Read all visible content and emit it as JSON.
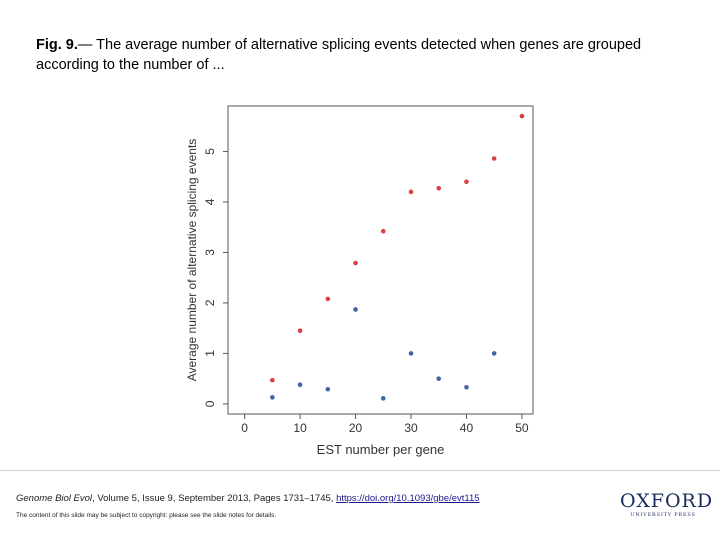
{
  "caption": {
    "label": "Fig. 9.",
    "text": "— The average number of alternative splicing events detected when genes are grouped according to the number of ..."
  },
  "chart_data": {
    "type": "scatter",
    "title": "",
    "xlabel": "EST number per gene",
    "ylabel": "Average number of alternative splicing events",
    "xlim": [
      -3,
      52
    ],
    "ylim": [
      -0.2,
      5.9
    ],
    "xticks": [
      0,
      10,
      20,
      30,
      40,
      50
    ],
    "yticks": [
      0,
      1,
      2,
      3,
      4,
      5
    ],
    "grid": false,
    "series": [
      {
        "name": "red",
        "color": "#d94040",
        "x": [
          5,
          10,
          15,
          20,
          25,
          30,
          35,
          40,
          45,
          50
        ],
        "y": [
          0.47,
          1.45,
          2.08,
          2.79,
          3.42,
          4.2,
          4.27,
          4.4,
          4.86,
          5.7
        ]
      },
      {
        "name": "blue",
        "color": "#3f64a8",
        "x": [
          5,
          10,
          15,
          20,
          25,
          30,
          35,
          40,
          45
        ],
        "y": [
          0.13,
          0.38,
          0.29,
          1.87,
          0.11,
          1.0,
          0.5,
          0.33,
          1.0
        ]
      }
    ]
  },
  "footer": {
    "journal": "Genome Biol Evol",
    "citation_rest": ", Volume 5, Issue 9, September 2013, Pages 1731–1745, ",
    "doi": "https://doi.org/10.1093/gbe/evt115",
    "notice": "The content of this slide may be subject to copyright: please see the slide notes for details.",
    "logo_main": "OXFORD",
    "logo_sub": "UNIVERSITY PRESS"
  }
}
